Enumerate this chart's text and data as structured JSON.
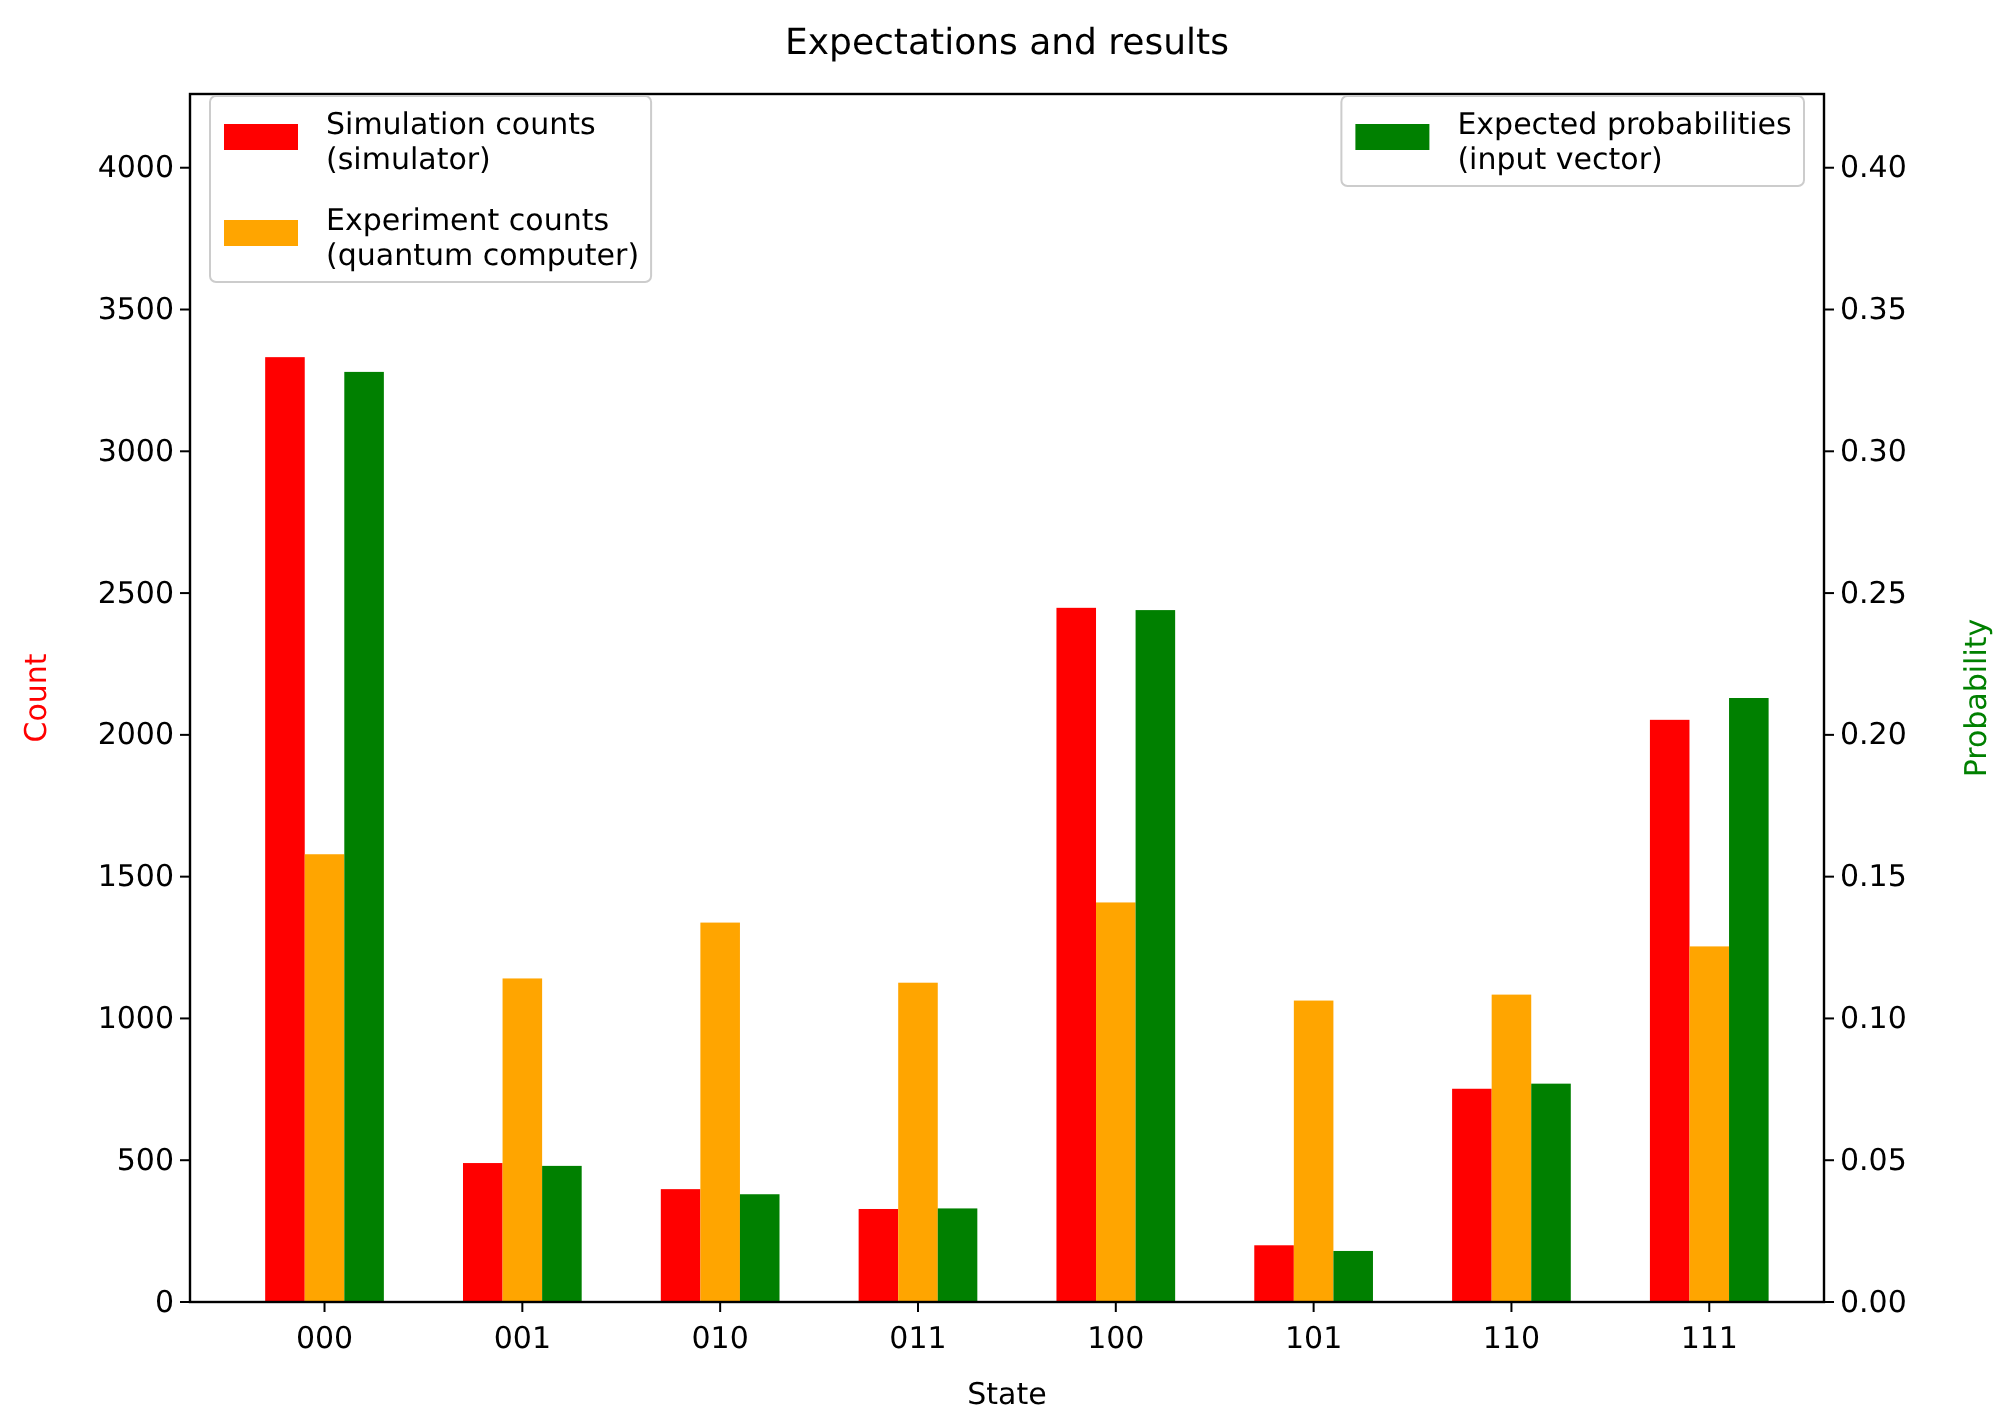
{
  "chart_data": {
    "type": "bar",
    "title": "Expectations and results",
    "xlabel": "State",
    "ylabel": "Count",
    "y2label": "Probability",
    "categories": [
      "000",
      "001",
      "010",
      "011",
      "100",
      "101",
      "110",
      "111"
    ],
    "series": [
      {
        "name": "Simulation counts\n(simulator)",
        "color": "#ff0000",
        "values": [
          3332,
          490,
          398,
          328,
          2448,
          200,
          752,
          2053
        ]
      },
      {
        "name": "Experiment counts\n(quantum computer)",
        "color": "#ffa500",
        "values": [
          1579,
          1141,
          1338,
          1126,
          1409,
          1063,
          1084,
          1254
        ]
      },
      {
        "name": "Expected probabilities\n(input vector)",
        "color": "#008000",
        "axis": "y2",
        "values": [
          0.328,
          0.048,
          0.038,
          0.033,
          0.244,
          0.018,
          0.077,
          0.213
        ]
      }
    ],
    "ylim": [
      0,
      4260
    ],
    "yticks": [
      0,
      500,
      1000,
      1500,
      2000,
      2500,
      3000,
      3500,
      4000
    ],
    "y2lim": [
      0,
      0.426
    ],
    "y2ticks": [
      {
        "value": 0,
        "label": "0.00"
      },
      {
        "value": 0.05,
        "label": "0.05"
      },
      {
        "value": 0.1,
        "label": "0.10"
      },
      {
        "value": 0.15,
        "label": "0.15"
      },
      {
        "value": 0.2,
        "label": "0.20"
      },
      {
        "value": 0.25,
        "label": "0.25"
      },
      {
        "value": 0.3,
        "label": "0.30"
      },
      {
        "value": 0.35,
        "label": "0.35"
      },
      {
        "value": 0.4,
        "label": "0.40"
      }
    ],
    "grid": false,
    "legend": "top"
  }
}
